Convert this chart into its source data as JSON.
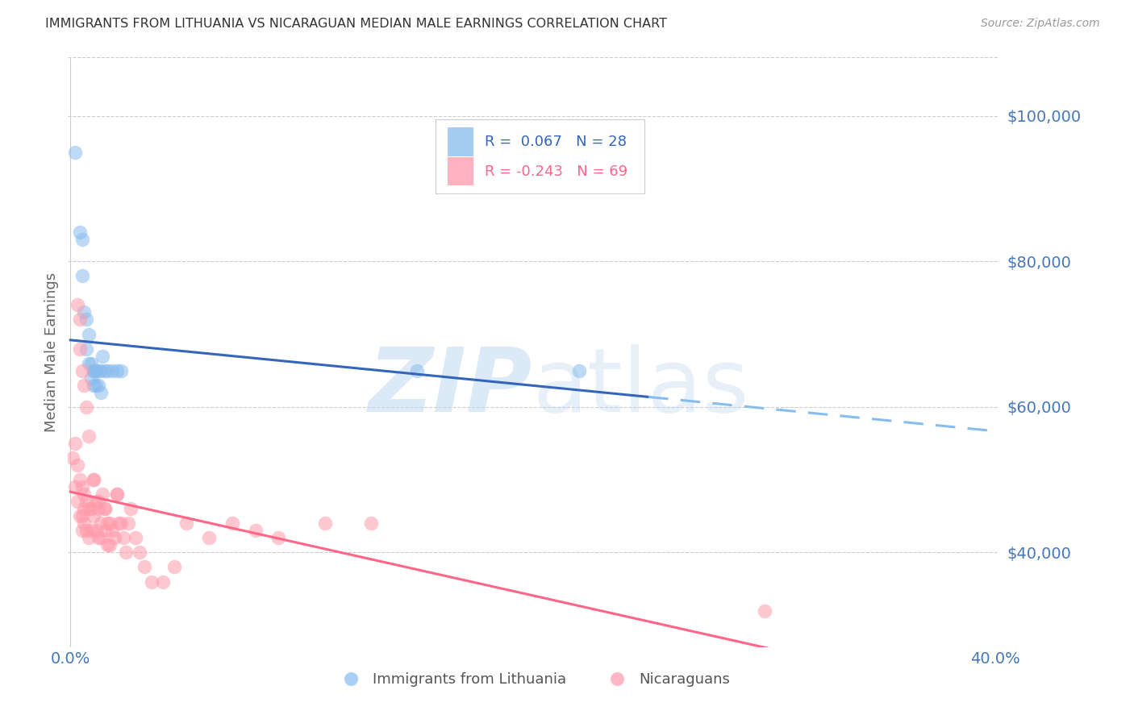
{
  "title": "IMMIGRANTS FROM LITHUANIA VS NICARAGUAN MEDIAN MALE EARNINGS CORRELATION CHART",
  "source": "Source: ZipAtlas.com",
  "ylabel": "Median Male Earnings",
  "ytick_labels": [
    "$40,000",
    "$60,000",
    "$80,000",
    "$100,000"
  ],
  "ytick_values": [
    40000,
    60000,
    80000,
    100000
  ],
  "ymin": 27000,
  "ymax": 108000,
  "xmin": -0.001,
  "xmax": 0.401,
  "blue_color": "#88BBEE",
  "pink_color": "#FF99AA",
  "blue_line_color": "#3366BB",
  "pink_line_color": "#FF6688",
  "dashed_line_color": "#88BBEE",
  "axis_label_color": "#4477BB",
  "legend_r1_color": "#3366BB",
  "legend_r2_color": "#FF6688",
  "watermark_color": "#C0D8F0",
  "lithuania_x": [
    0.002,
    0.004,
    0.005,
    0.005,
    0.006,
    0.007,
    0.007,
    0.008,
    0.008,
    0.009,
    0.009,
    0.01,
    0.01,
    0.01,
    0.011,
    0.011,
    0.012,
    0.012,
    0.013,
    0.013,
    0.014,
    0.015,
    0.016,
    0.018,
    0.02,
    0.022,
    0.15,
    0.22
  ],
  "lithuania_y": [
    95000,
    84000,
    83000,
    78000,
    73000,
    72000,
    68000,
    70000,
    66000,
    66000,
    64000,
    65000,
    63000,
    65000,
    65000,
    63000,
    65000,
    63000,
    65000,
    62000,
    67000,
    65000,
    65000,
    65000,
    65000,
    65000,
    65000,
    65000
  ],
  "nicaraguan_x": [
    0.001,
    0.002,
    0.002,
    0.003,
    0.003,
    0.004,
    0.004,
    0.005,
    0.005,
    0.005,
    0.006,
    0.006,
    0.006,
    0.007,
    0.007,
    0.008,
    0.008,
    0.009,
    0.009,
    0.01,
    0.01,
    0.011,
    0.011,
    0.012,
    0.012,
    0.013,
    0.013,
    0.014,
    0.015,
    0.015,
    0.016,
    0.016,
    0.017,
    0.017,
    0.018,
    0.019,
    0.02,
    0.021,
    0.022,
    0.023,
    0.024,
    0.025,
    0.026,
    0.028,
    0.03,
    0.032,
    0.035,
    0.04,
    0.045,
    0.05,
    0.06,
    0.07,
    0.08,
    0.09,
    0.11,
    0.13,
    0.003,
    0.004,
    0.004,
    0.005,
    0.006,
    0.007,
    0.008,
    0.01,
    0.012,
    0.015,
    0.02,
    0.3
  ],
  "nicaraguan_y": [
    53000,
    55000,
    49000,
    52000,
    47000,
    50000,
    45000,
    49000,
    45000,
    43000,
    48000,
    46000,
    44000,
    47000,
    43000,
    46000,
    42000,
    46000,
    43000,
    50000,
    45000,
    47000,
    43000,
    46000,
    42000,
    44000,
    42000,
    48000,
    46000,
    43000,
    44000,
    41000,
    44000,
    41000,
    43000,
    42000,
    48000,
    44000,
    44000,
    42000,
    40000,
    44000,
    46000,
    42000,
    40000,
    38000,
    36000,
    36000,
    38000,
    44000,
    42000,
    44000,
    43000,
    42000,
    44000,
    44000,
    74000,
    72000,
    68000,
    65000,
    63000,
    60000,
    56000,
    50000,
    47000,
    46000,
    48000,
    32000
  ]
}
